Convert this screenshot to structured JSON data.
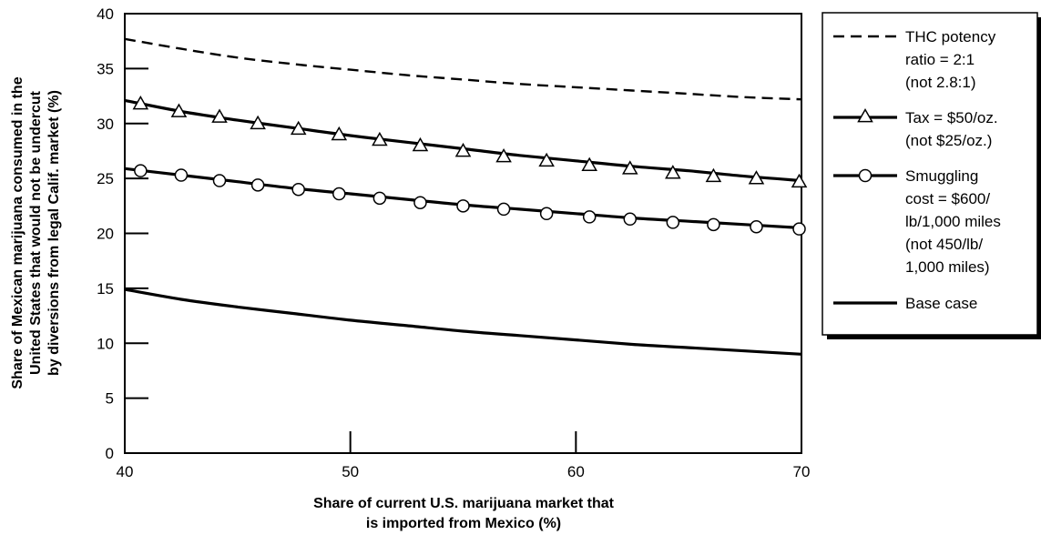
{
  "chart_data": {
    "type": "line",
    "xlabel": [
      "Share of current U.S. marijuana market that",
      "is imported from Mexico (%)"
    ],
    "ylabel": [
      "Share of Mexican marijuana consumed in the",
      "United States that would not be undercut",
      "by diversions from legal Calif. market (%)"
    ],
    "xlim": [
      40,
      70
    ],
    "ylim": [
      0,
      40
    ],
    "x_ticks": [
      40,
      50,
      60,
      70
    ],
    "y_ticks": [
      0,
      5,
      10,
      15,
      20,
      25,
      30,
      35,
      40
    ],
    "x": [
      40,
      42.5,
      45,
      47.5,
      50,
      52.5,
      55,
      57.5,
      60,
      62.5,
      65,
      67.5,
      70
    ],
    "series": [
      {
        "name": [
          "THC potency",
          "ratio = 2:1",
          "(not 2.8:1)"
        ],
        "style": "dashed",
        "marker": "none",
        "values": [
          37.7,
          36.8,
          36.0,
          35.4,
          34.9,
          34.4,
          34.0,
          33.6,
          33.3,
          33.0,
          32.7,
          32.4,
          32.2
        ]
      },
      {
        "name": [
          "Tax = $50/oz.",
          "(not $25/oz.)"
        ],
        "style": "solid",
        "marker": "triangle",
        "values": [
          32.1,
          31.1,
          30.3,
          29.6,
          28.9,
          28.3,
          27.7,
          27.1,
          26.6,
          26.1,
          25.7,
          25.2,
          24.8
        ],
        "marker_x": [
          40.7,
          42.4,
          44.2,
          45.9,
          47.7,
          49.5,
          51.3,
          53.1,
          55.0,
          56.8,
          58.7,
          60.6,
          62.4,
          64.3,
          66.1,
          68.0,
          69.9
        ],
        "marker_values": [
          31.8,
          31.1,
          30.6,
          30.0,
          29.5,
          29.0,
          28.5,
          28.0,
          27.5,
          27.0,
          26.6,
          26.2,
          25.9,
          25.5,
          25.2,
          25.0,
          24.7
        ]
      },
      {
        "name": [
          "Smuggling",
          "cost = $600/",
          "lb/1,000 miles",
          "(not 450/lb/",
          "1,000 miles)"
        ],
        "style": "solid",
        "marker": "circle",
        "values": [
          25.9,
          25.3,
          24.7,
          24.1,
          23.6,
          23.1,
          22.6,
          22.2,
          21.8,
          21.4,
          21.1,
          20.8,
          20.5
        ],
        "marker_x": [
          40.7,
          42.5,
          44.2,
          45.9,
          47.7,
          49.5,
          51.3,
          53.1,
          55.0,
          56.8,
          58.7,
          60.6,
          62.4,
          64.3,
          66.1,
          68.0,
          69.9
        ],
        "marker_values": [
          25.7,
          25.3,
          24.8,
          24.4,
          24.0,
          23.6,
          23.2,
          22.8,
          22.5,
          22.2,
          21.8,
          21.5,
          21.3,
          21.0,
          20.8,
          20.6,
          20.4
        ]
      },
      {
        "name": [
          "Base case"
        ],
        "style": "solid",
        "marker": "none",
        "values": [
          14.9,
          14.0,
          13.3,
          12.7,
          12.1,
          11.6,
          11.1,
          10.7,
          10.3,
          9.9,
          9.6,
          9.3,
          9.0
        ]
      }
    ],
    "grid": false,
    "legend_position": "right"
  }
}
